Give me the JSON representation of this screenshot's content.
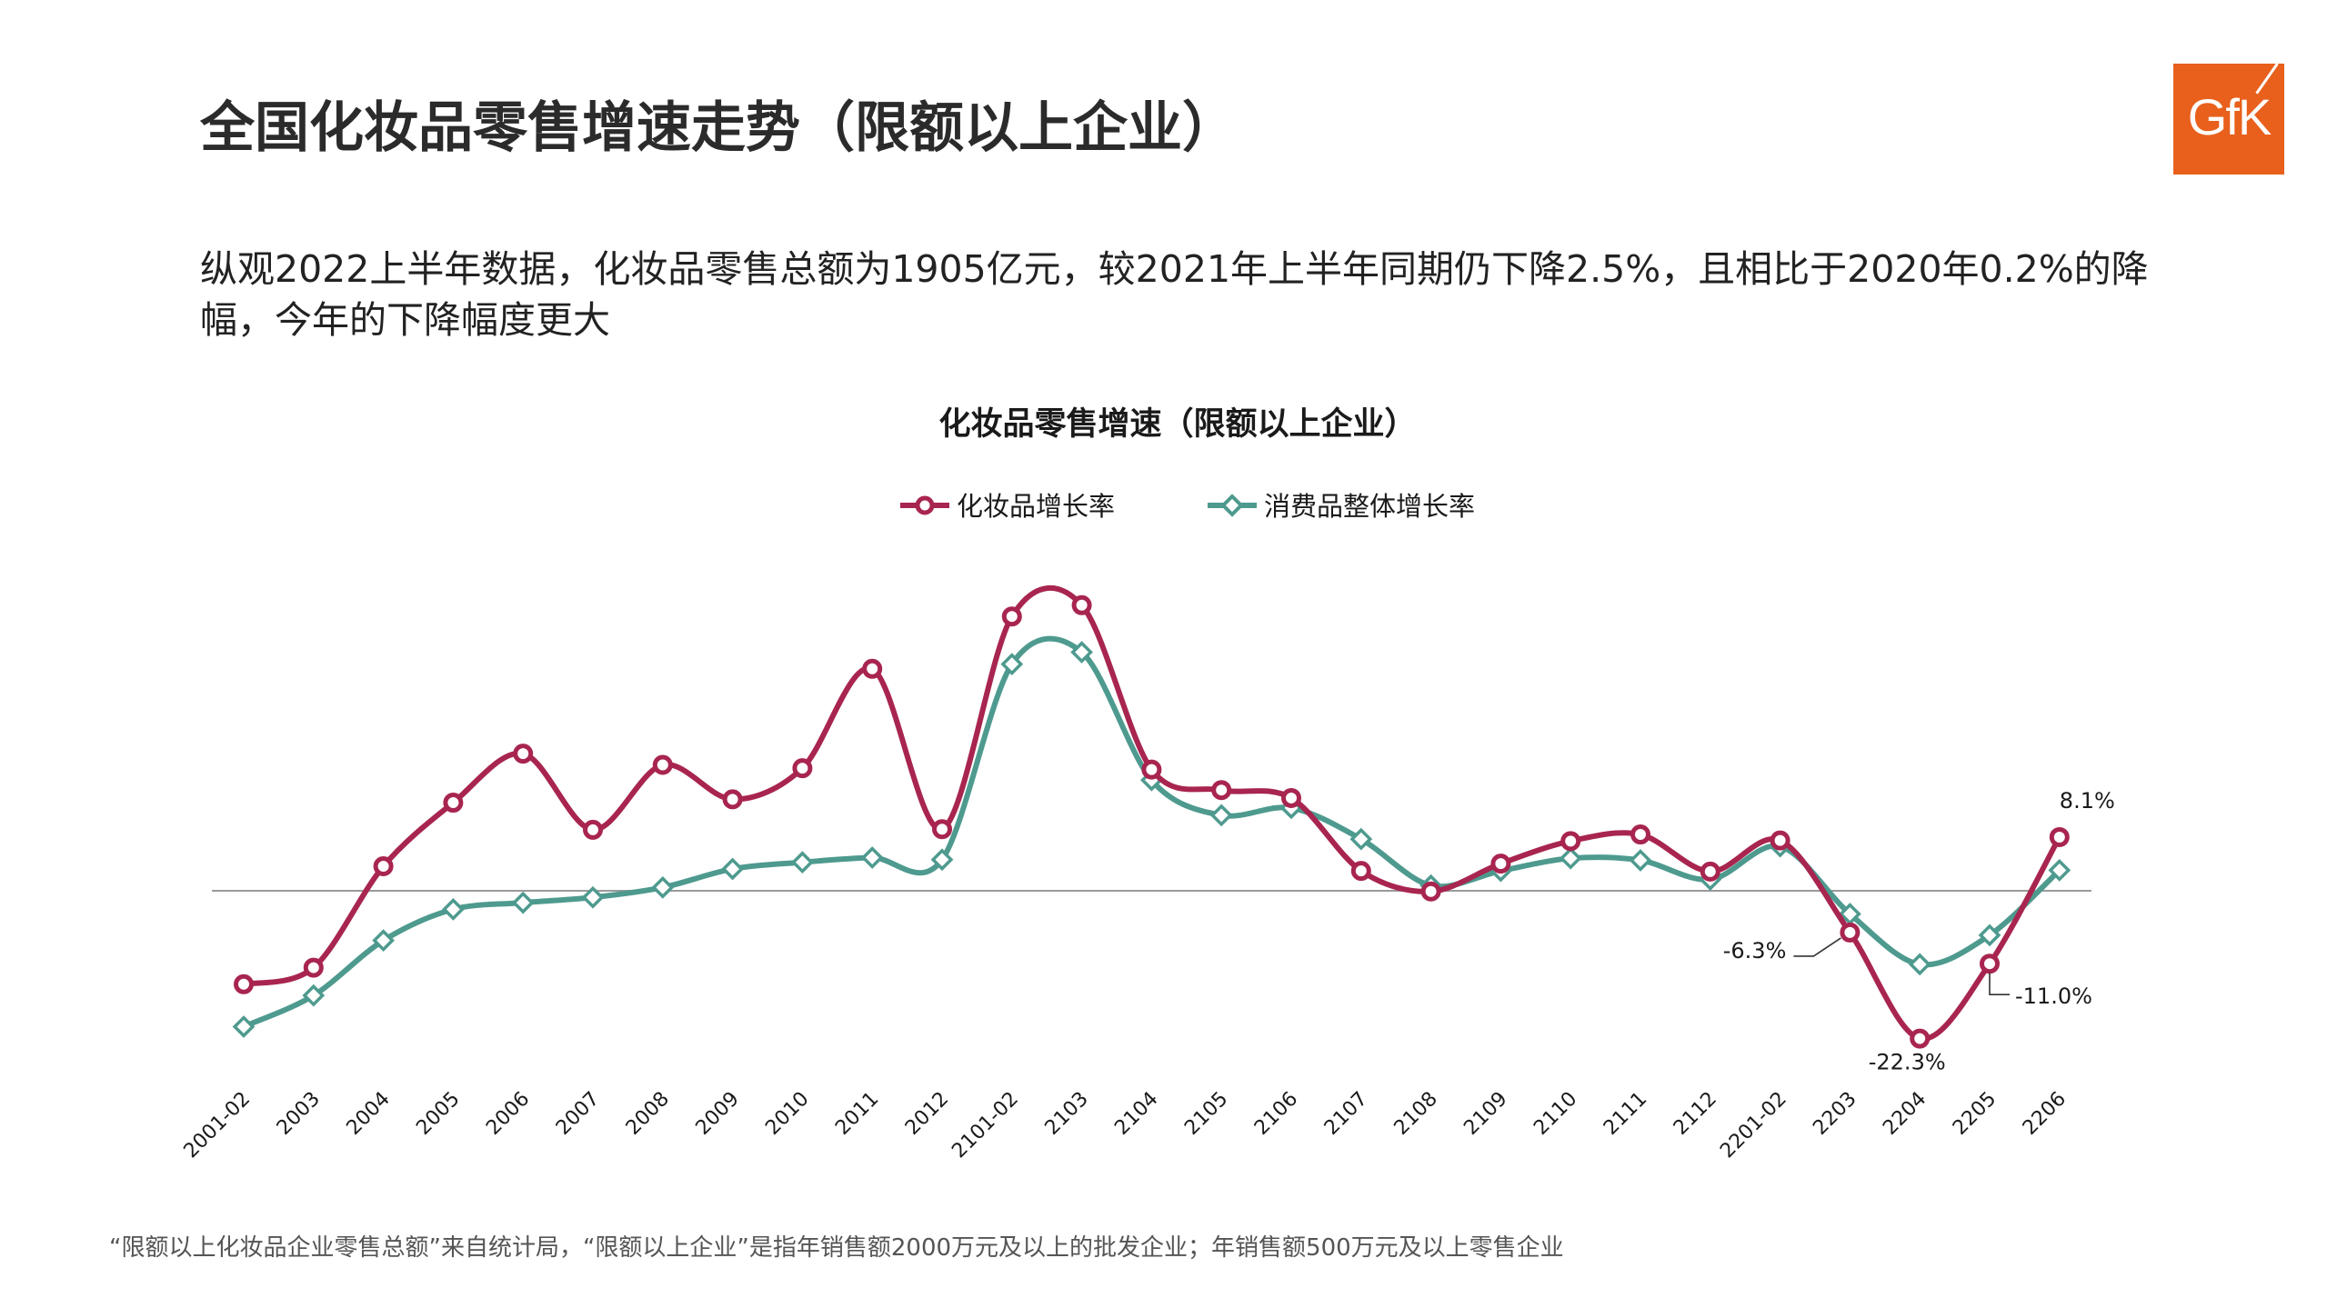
{
  "header": {
    "title": "全国化妆品零售增速走势（限额以上企业）",
    "logo_text": "GfK"
  },
  "summary": "纵观2022上半年数据，化妆品零售总额为1905亿元，较2021年上半年同期仍下降2.5%，且相比于2020年0.2%的降幅，今年的下降幅度更大",
  "footnote": "“限额以上化妆品企业零售总额”来自统计局，“限额以上企业”是指年销售额2000万元及以上的批发企业；年销售额500万元及以上零售企业",
  "colors": {
    "cosmetics": "#a8254f",
    "consumer": "#4e9a8f",
    "logo": "#e8601c"
  },
  "chart_data": {
    "type": "line",
    "title": "化妆品零售增速（限额以上企业）",
    "legend_position": "top-center",
    "categories": [
      "2001-02",
      "2003",
      "2004",
      "2005",
      "2006",
      "2007",
      "2008",
      "2009",
      "2010",
      "2011",
      "2012",
      "2101-02",
      "2103",
      "2104",
      "2105",
      "2106",
      "2107",
      "2108",
      "2109",
      "2110",
      "2111",
      "2112",
      "2201-02",
      "2203",
      "2204",
      "2205",
      "2206"
    ],
    "series": [
      {
        "name": "化妆品增长率",
        "marker": "circle",
        "values": [
          -14.1,
          -11.6,
          3.7,
          13.3,
          20.7,
          9.2,
          19.0,
          13.8,
          18.5,
          33.5,
          9.3,
          41.4,
          43.1,
          18.3,
          15.2,
          14.0,
          3.0,
          -0.1,
          4.1,
          7.5,
          8.5,
          2.9,
          7.6,
          -6.3,
          -22.3,
          -11.0,
          8.1
        ]
      },
      {
        "name": "消费品整体增长率",
        "marker": "diamond",
        "values": [
          -20.5,
          -15.8,
          -7.5,
          -2.8,
          -1.8,
          -1.0,
          0.5,
          3.3,
          4.3,
          5.0,
          4.7,
          34.2,
          36.0,
          16.7,
          11.4,
          12.5,
          7.8,
          0.8,
          3.0,
          4.9,
          4.6,
          1.7,
          6.7,
          -3.5,
          -11.1,
          -6.7,
          3.1
        ]
      }
    ],
    "data_labels": [
      {
        "series": 0,
        "index": 23,
        "text": "-6.3%"
      },
      {
        "series": 0,
        "index": 24,
        "text": "-22.3%"
      },
      {
        "series": 0,
        "index": 25,
        "text": "-11.0%"
      },
      {
        "series": 0,
        "index": 26,
        "text": "8.1%"
      }
    ],
    "grid": false,
    "zero_line": true
  }
}
